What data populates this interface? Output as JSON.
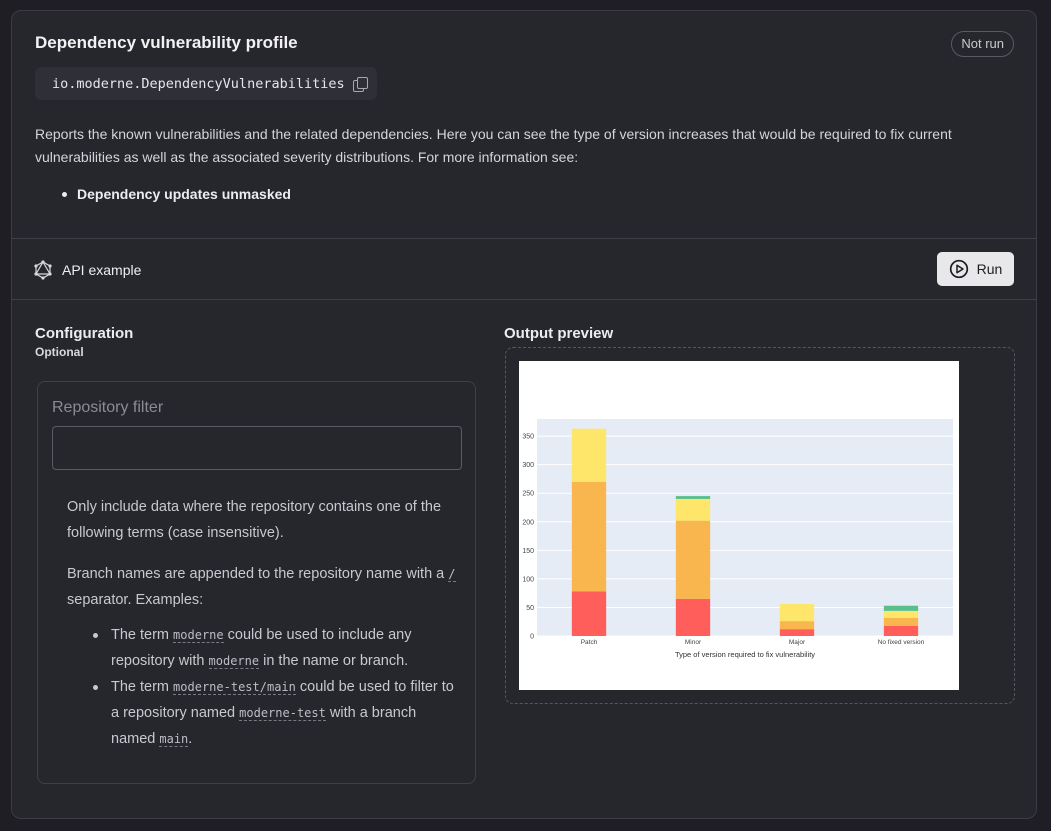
{
  "header": {
    "title": "Dependency vulnerability profile",
    "status_badge": "Not run",
    "recipe_id": "io.moderne.DependencyVulnerabilities"
  },
  "description": {
    "text": "Reports the known vulnerabilities and the related dependencies. Here you can see the type of version increases that would be required to fix current vulnerabilities as well as the associated severity distributions. For more information see:",
    "link": "Dependency updates unmasked"
  },
  "api": {
    "label": "API example",
    "run_label": "Run"
  },
  "config": {
    "heading": "Configuration",
    "optional": "Optional",
    "field_label": "Repository filter",
    "field_value": "",
    "help_p1": "Only include data where the repository contains one of the following terms (case insensitive).",
    "help_p2_a": "Branch names are appended to the repository name with a ",
    "help_p2_code": "/",
    "help_p2_b": " separator. Examples:",
    "ex1_a": "The term ",
    "ex1_code1": "moderne",
    "ex1_b": " could be used to include any repository with ",
    "ex1_code2": "moderne",
    "ex1_c": " in the name or branch.",
    "ex2_a": "The term ",
    "ex2_code1": "moderne-test/main",
    "ex2_b": " could be used to filter to a repository named ",
    "ex2_code2": "moderne-test",
    "ex2_c": " with a branch named ",
    "ex2_code3": "main",
    "ex2_d": "."
  },
  "preview": {
    "heading": "Output preview"
  },
  "chart_data": {
    "type": "bar",
    "stacked": true,
    "categories": [
      "Patch",
      "Minor",
      "Major",
      "No fixed version"
    ],
    "series": [
      {
        "color": "#ff5e5b",
        "values": [
          78,
          65,
          12,
          18
        ]
      },
      {
        "color": "#f9b54e",
        "values": [
          192,
          137,
          14,
          14
        ]
      },
      {
        "color": "#fde66a",
        "values": [
          93,
          38,
          30,
          12
        ]
      },
      {
        "color": "#5bbf8a",
        "values": [
          0,
          5,
          0,
          9
        ]
      }
    ],
    "xlabel": "Type of version required to fix vulnerability",
    "ylabel": "",
    "ylim": [
      0,
      380
    ],
    "yticks": [
      0,
      50,
      100,
      150,
      200,
      250,
      300,
      350
    ],
    "grid": true
  }
}
